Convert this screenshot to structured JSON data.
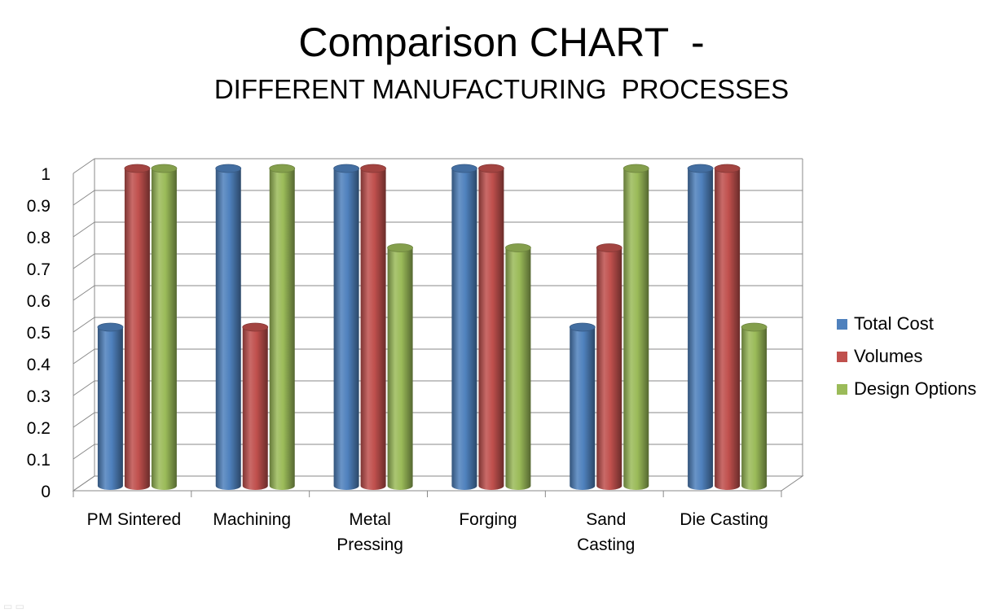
{
  "chart_data": {
    "type": "bar",
    "title": "Comparison CHART  -",
    "subtitle": "DIFFERENT MANUFACTURING  PROCESSES",
    "categories": [
      "PM Sintered",
      "Machining",
      "Metal Pressing",
      "Forging",
      "Sand Casting",
      "Die Casting"
    ],
    "category_lines": [
      [
        "PM Sintered"
      ],
      [
        "Machining"
      ],
      [
        "Metal",
        "Pressing"
      ],
      [
        "Forging"
      ],
      [
        "Sand",
        "Casting"
      ],
      [
        "Die Casting"
      ]
    ],
    "series": [
      {
        "name": "Total Cost",
        "values": [
          0.5,
          1,
          1,
          1,
          0.5,
          1
        ],
        "color": "#4f81bd"
      },
      {
        "name": "Volumes",
        "values": [
          1,
          0.5,
          1,
          1,
          0.75,
          1
        ],
        "color": "#c0504d"
      },
      {
        "name": "Design Options",
        "values": [
          1,
          1,
          0.75,
          0.75,
          1,
          0.5
        ],
        "color": "#9bbb59"
      }
    ],
    "ylim": [
      0,
      1
    ],
    "yticks": [
      "0",
      "0.1",
      "0.2",
      "0.3",
      "0.4",
      "0.5",
      "0.6",
      "0.7",
      "0.8",
      "0.9",
      "1"
    ],
    "grid": true,
    "legend_position": "right",
    "style": "3d-cylinder"
  }
}
